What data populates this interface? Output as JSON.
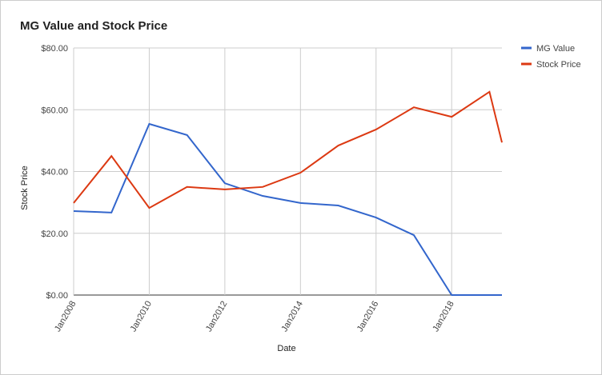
{
  "chart_data": {
    "type": "line",
    "title": "MG Value and Stock Price",
    "x_label": "Date",
    "y_label": "Stock Price",
    "x": [
      2008,
      2009,
      2010,
      2011,
      2012,
      2013,
      2014,
      2015,
      2016,
      2017,
      2018,
      2019,
      2019.33
    ],
    "series": [
      {
        "name": "MG Value",
        "color": "#3366cc",
        "values": [
          27.2,
          26.7,
          55.4,
          51.8,
          36.2,
          32.1,
          29.8,
          29.0,
          25.1,
          19.4,
          0,
          0,
          0
        ]
      },
      {
        "name": "Stock Price",
        "color": "#dc3912",
        "values": [
          29.8,
          45.0,
          28.2,
          35.0,
          34.2,
          35.0,
          39.6,
          48.4,
          53.6,
          60.8,
          57.7,
          65.8,
          49.4
        ]
      }
    ],
    "xlim": [
      2008,
      2019.33
    ],
    "xticks": [
      {
        "value": 2008,
        "label": "Jan2008"
      },
      {
        "value": 2010,
        "label": "Jan2010"
      },
      {
        "value": 2012,
        "label": "Jan2012"
      },
      {
        "value": 2014,
        "label": "Jan2014"
      },
      {
        "value": 2016,
        "label": "Jan2016"
      },
      {
        "value": 2018,
        "label": "Jan2018"
      }
    ],
    "ylim": [
      0,
      80
    ],
    "yticks": [
      {
        "value": 0,
        "label": "$0.00"
      },
      {
        "value": 20,
        "label": "$20.00"
      },
      {
        "value": 40,
        "label": "$40.00"
      },
      {
        "value": 60,
        "label": "$60.00"
      },
      {
        "value": 80,
        "label": "$80.00"
      }
    ],
    "grid": true,
    "legend": "right"
  }
}
